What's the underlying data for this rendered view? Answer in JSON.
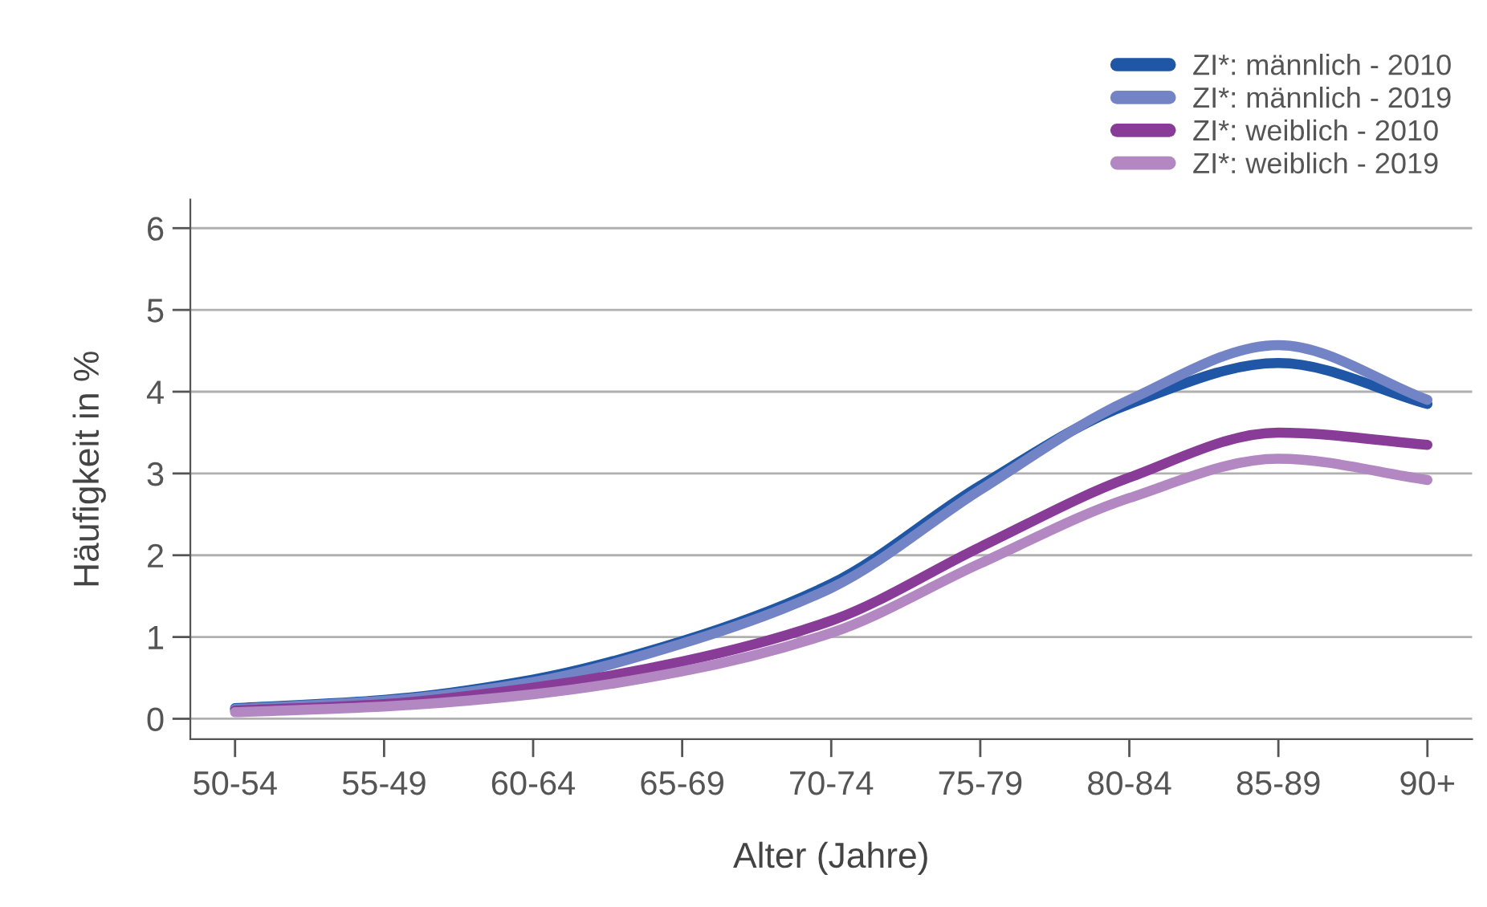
{
  "chart_data": {
    "type": "line",
    "xlabel": "Alter (Jahre)",
    "ylabel": "Häufigkeit in %",
    "categories": [
      "50-54",
      "55-49",
      "60-64",
      "65-69",
      "70-74",
      "75-79",
      "80-84",
      "85-89",
      "90+"
    ],
    "series": [
      {
        "name": "ZI*: männlich - 2010",
        "color": "#1f56a5",
        "values": [
          0.13,
          0.23,
          0.48,
          0.95,
          1.65,
          2.85,
          3.85,
          4.35,
          3.85
        ]
      },
      {
        "name": "ZI*: männlich - 2019",
        "color": "#7384c6",
        "values": [
          0.12,
          0.22,
          0.45,
          0.92,
          1.6,
          2.8,
          3.9,
          4.57,
          3.9
        ]
      },
      {
        "name": "ZI*: weiblich - 2010",
        "color": "#883c98",
        "values": [
          0.1,
          0.18,
          0.38,
          0.7,
          1.2,
          2.1,
          2.95,
          3.5,
          3.35
        ]
      },
      {
        "name": "ZI*: weiblich - 2019",
        "color": "#b388c2",
        "values": [
          0.08,
          0.15,
          0.3,
          0.58,
          1.05,
          1.9,
          2.7,
          3.18,
          2.92
        ]
      }
    ],
    "ylim": [
      -0.25,
      6.35
    ],
    "yticks": [
      0,
      1,
      2,
      3,
      4,
      5,
      6
    ],
    "grid": "y",
    "legend": "top right",
    "marker": "none",
    "line_style": "solid"
  }
}
